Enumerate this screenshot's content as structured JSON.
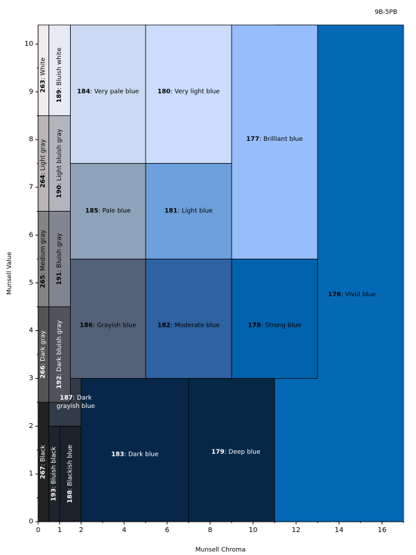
{
  "chart_data": {
    "type": "heatmap",
    "hue_label": "9B-5PB",
    "xlabel": "Munsell Chroma",
    "ylabel": "Munsell Value",
    "xlim": [
      0,
      17
    ],
    "ylim": [
      0,
      10.4
    ],
    "x_ticks": [
      0,
      1,
      2,
      4,
      6,
      8,
      10,
      12,
      14,
      16
    ],
    "y_ticks": [
      0,
      1,
      2,
      3,
      4,
      5,
      6,
      7,
      8,
      9,
      10
    ],
    "regions": [
      {
        "id": "176",
        "name": "Vivid blue",
        "color": "#0469b5",
        "text_color": "#000000",
        "x0": 11,
        "x1": 17,
        "y0": 0,
        "y1": 10.4,
        "label_x": 14.6,
        "label_y": 4.75,
        "vertical": false
      },
      {
        "id": "177",
        "name": "Brilliant blue",
        "color": "#97bdfb",
        "text_color": "#000000",
        "x0": 9,
        "x1": 13,
        "y0": 5.5,
        "y1": 10.4,
        "label_x": 11,
        "label_y": 8,
        "vertical": false
      },
      {
        "id": "178",
        "name": "Strong blue",
        "color": "#0062ac",
        "text_color": "#000000",
        "x0": 9,
        "x1": 13,
        "y0": 3,
        "y1": 5.5,
        "label_x": 11,
        "label_y": 4.1,
        "vertical": false
      },
      {
        "id": "180",
        "name": "Very light blue",
        "color": "#cbdcfd",
        "text_color": "#000000",
        "x0": 5,
        "x1": 9,
        "y0": 7.5,
        "y1": 10.4,
        "label_x": 7,
        "label_y": 9,
        "vertical": false
      },
      {
        "id": "181",
        "name": "Light blue",
        "color": "#6da0dc",
        "text_color": "#000000",
        "x0": 5,
        "x1": 9,
        "y0": 5.5,
        "y1": 7.5,
        "label_x": 7,
        "label_y": 6.5,
        "vertical": false
      },
      {
        "id": "182",
        "name": "Moderate blue",
        "color": "#2e62a0",
        "text_color": "#000000",
        "x0": 5,
        "x1": 9,
        "y0": 3,
        "y1": 5.5,
        "label_x": 7,
        "label_y": 4.1,
        "vertical": false
      },
      {
        "id": "184",
        "name": "Very pale blue",
        "color": "#cbdaf2",
        "text_color": "#000000",
        "x0": 1.5,
        "x1": 5,
        "y0": 7.5,
        "y1": 10.4,
        "label_x": 3.25,
        "label_y": 9,
        "vertical": false
      },
      {
        "id": "185",
        "name": "Pale blue",
        "color": "#8ea2ba",
        "text_color": "#000000",
        "x0": 1.5,
        "x1": 5,
        "y0": 5.5,
        "y1": 7.5,
        "label_x": 3.25,
        "label_y": 6.5,
        "vertical": false
      },
      {
        "id": "186",
        "name": "Grayish blue",
        "color": "#536178",
        "text_color": "#000000",
        "x0": 1.5,
        "x1": 5,
        "y0": 3,
        "y1": 5.5,
        "label_x": 3.25,
        "label_y": 4.1,
        "vertical": false
      },
      {
        "id": "187",
        "name": "Dark grayish blue",
        "color": "#323b48",
        "text_color": "#ffffff",
        "x0": 0.5,
        "x1": 3,
        "y0": 2,
        "y1": 3,
        "label_x": 1.75,
        "label_y": 2.5,
        "vertical": false,
        "line1": "Dark",
        "line2": "grayish blue"
      },
      {
        "id": "183",
        "name": "Dark blue",
        "color": "#06274a",
        "text_color": "#ffffff",
        "x0": 2,
        "x1": 7,
        "y0": 0,
        "y1": 3,
        "label_x": 4.5,
        "label_y": 1.4,
        "vertical": false
      },
      {
        "id": "179",
        "name": "Deep blue",
        "color": "#042846",
        "text_color": "#ffffff",
        "x0": 7,
        "x1": 11,
        "y0": 0,
        "y1": 3,
        "label_x": 9.2,
        "label_y": 1.45,
        "vertical": false
      },
      {
        "id": "188",
        "name": "Blackish blue",
        "color": "#1b222b",
        "text_color": "#ffffff",
        "x0": 1,
        "x1": 2,
        "y0": 0,
        "y1": 2,
        "label_x": 1.5,
        "label_y": 1,
        "vertical": true
      },
      {
        "id": "193",
        "name": "Bluish black",
        "color": "#20252d",
        "text_color": "#ffffff",
        "x0": 0.5,
        "x1": 1,
        "y0": 0,
        "y1": 2,
        "label_x": 0.75,
        "label_y": 1,
        "vertical": true
      },
      {
        "id": "267",
        "name": "Black",
        "color": "#222222",
        "text_color": "#ffffff",
        "x0": 0,
        "x1": 0.5,
        "y0": 0,
        "y1": 2.5,
        "label_x": 0.25,
        "label_y": 1.25,
        "vertical": true
      },
      {
        "id": "263",
        "name": "White",
        "color": "#f1ecec",
        "text_color": "#000000",
        "x0": 0,
        "x1": 0.5,
        "y0": 8.5,
        "y1": 10.4,
        "label_x": 0.25,
        "label_y": 9.35,
        "vertical": true
      },
      {
        "id": "189",
        "name": "Bluish white",
        "color": "#e6ebf6",
        "text_color": "#000000",
        "x0": 0.5,
        "x1": 1.5,
        "y0": 8.5,
        "y1": 10.4,
        "label_x": 1,
        "label_y": 9.35,
        "vertical": true
      },
      {
        "id": "264",
        "name": "Light gray",
        "color": "#b8b5b4",
        "text_color": "#000000",
        "x0": 0,
        "x1": 0.5,
        "y0": 6.5,
        "y1": 8.5,
        "label_x": 0.25,
        "label_y": 7.5,
        "vertical": true
      },
      {
        "id": "190",
        "name": "Light bluish gray",
        "color": "#b1b5bd",
        "text_color": "#000000",
        "x0": 0.5,
        "x1": 1.5,
        "y0": 6.5,
        "y1": 8.5,
        "label_x": 1,
        "label_y": 7.5,
        "vertical": true
      },
      {
        "id": "265",
        "name": "Medium gray",
        "color": "#858383",
        "text_color": "#000000",
        "x0": 0,
        "x1": 0.5,
        "y0": 4.5,
        "y1": 6.5,
        "label_x": 0.25,
        "label_y": 5.5,
        "vertical": true
      },
      {
        "id": "191",
        "name": "Bluish gray",
        "color": "#81858f",
        "text_color": "#000000",
        "x0": 0.5,
        "x1": 1.5,
        "y0": 4.5,
        "y1": 6.5,
        "label_x": 1,
        "label_y": 5.5,
        "vertical": true
      },
      {
        "id": "266",
        "name": "Dark gray",
        "color": "#555454",
        "text_color": "#ffffff",
        "x0": 0,
        "x1": 0.5,
        "y0": 2.5,
        "y1": 4.5,
        "label_x": 0.25,
        "label_y": 3.5,
        "vertical": true
      },
      {
        "id": "192",
        "name": "Dark bluish gray",
        "color": "#50545a",
        "text_color": "#ffffff",
        "x0": 0.5,
        "x1": 1.5,
        "y0": 2.5,
        "y1": 4.5,
        "label_x": 1,
        "label_y": 3.5,
        "vertical": true
      }
    ]
  }
}
